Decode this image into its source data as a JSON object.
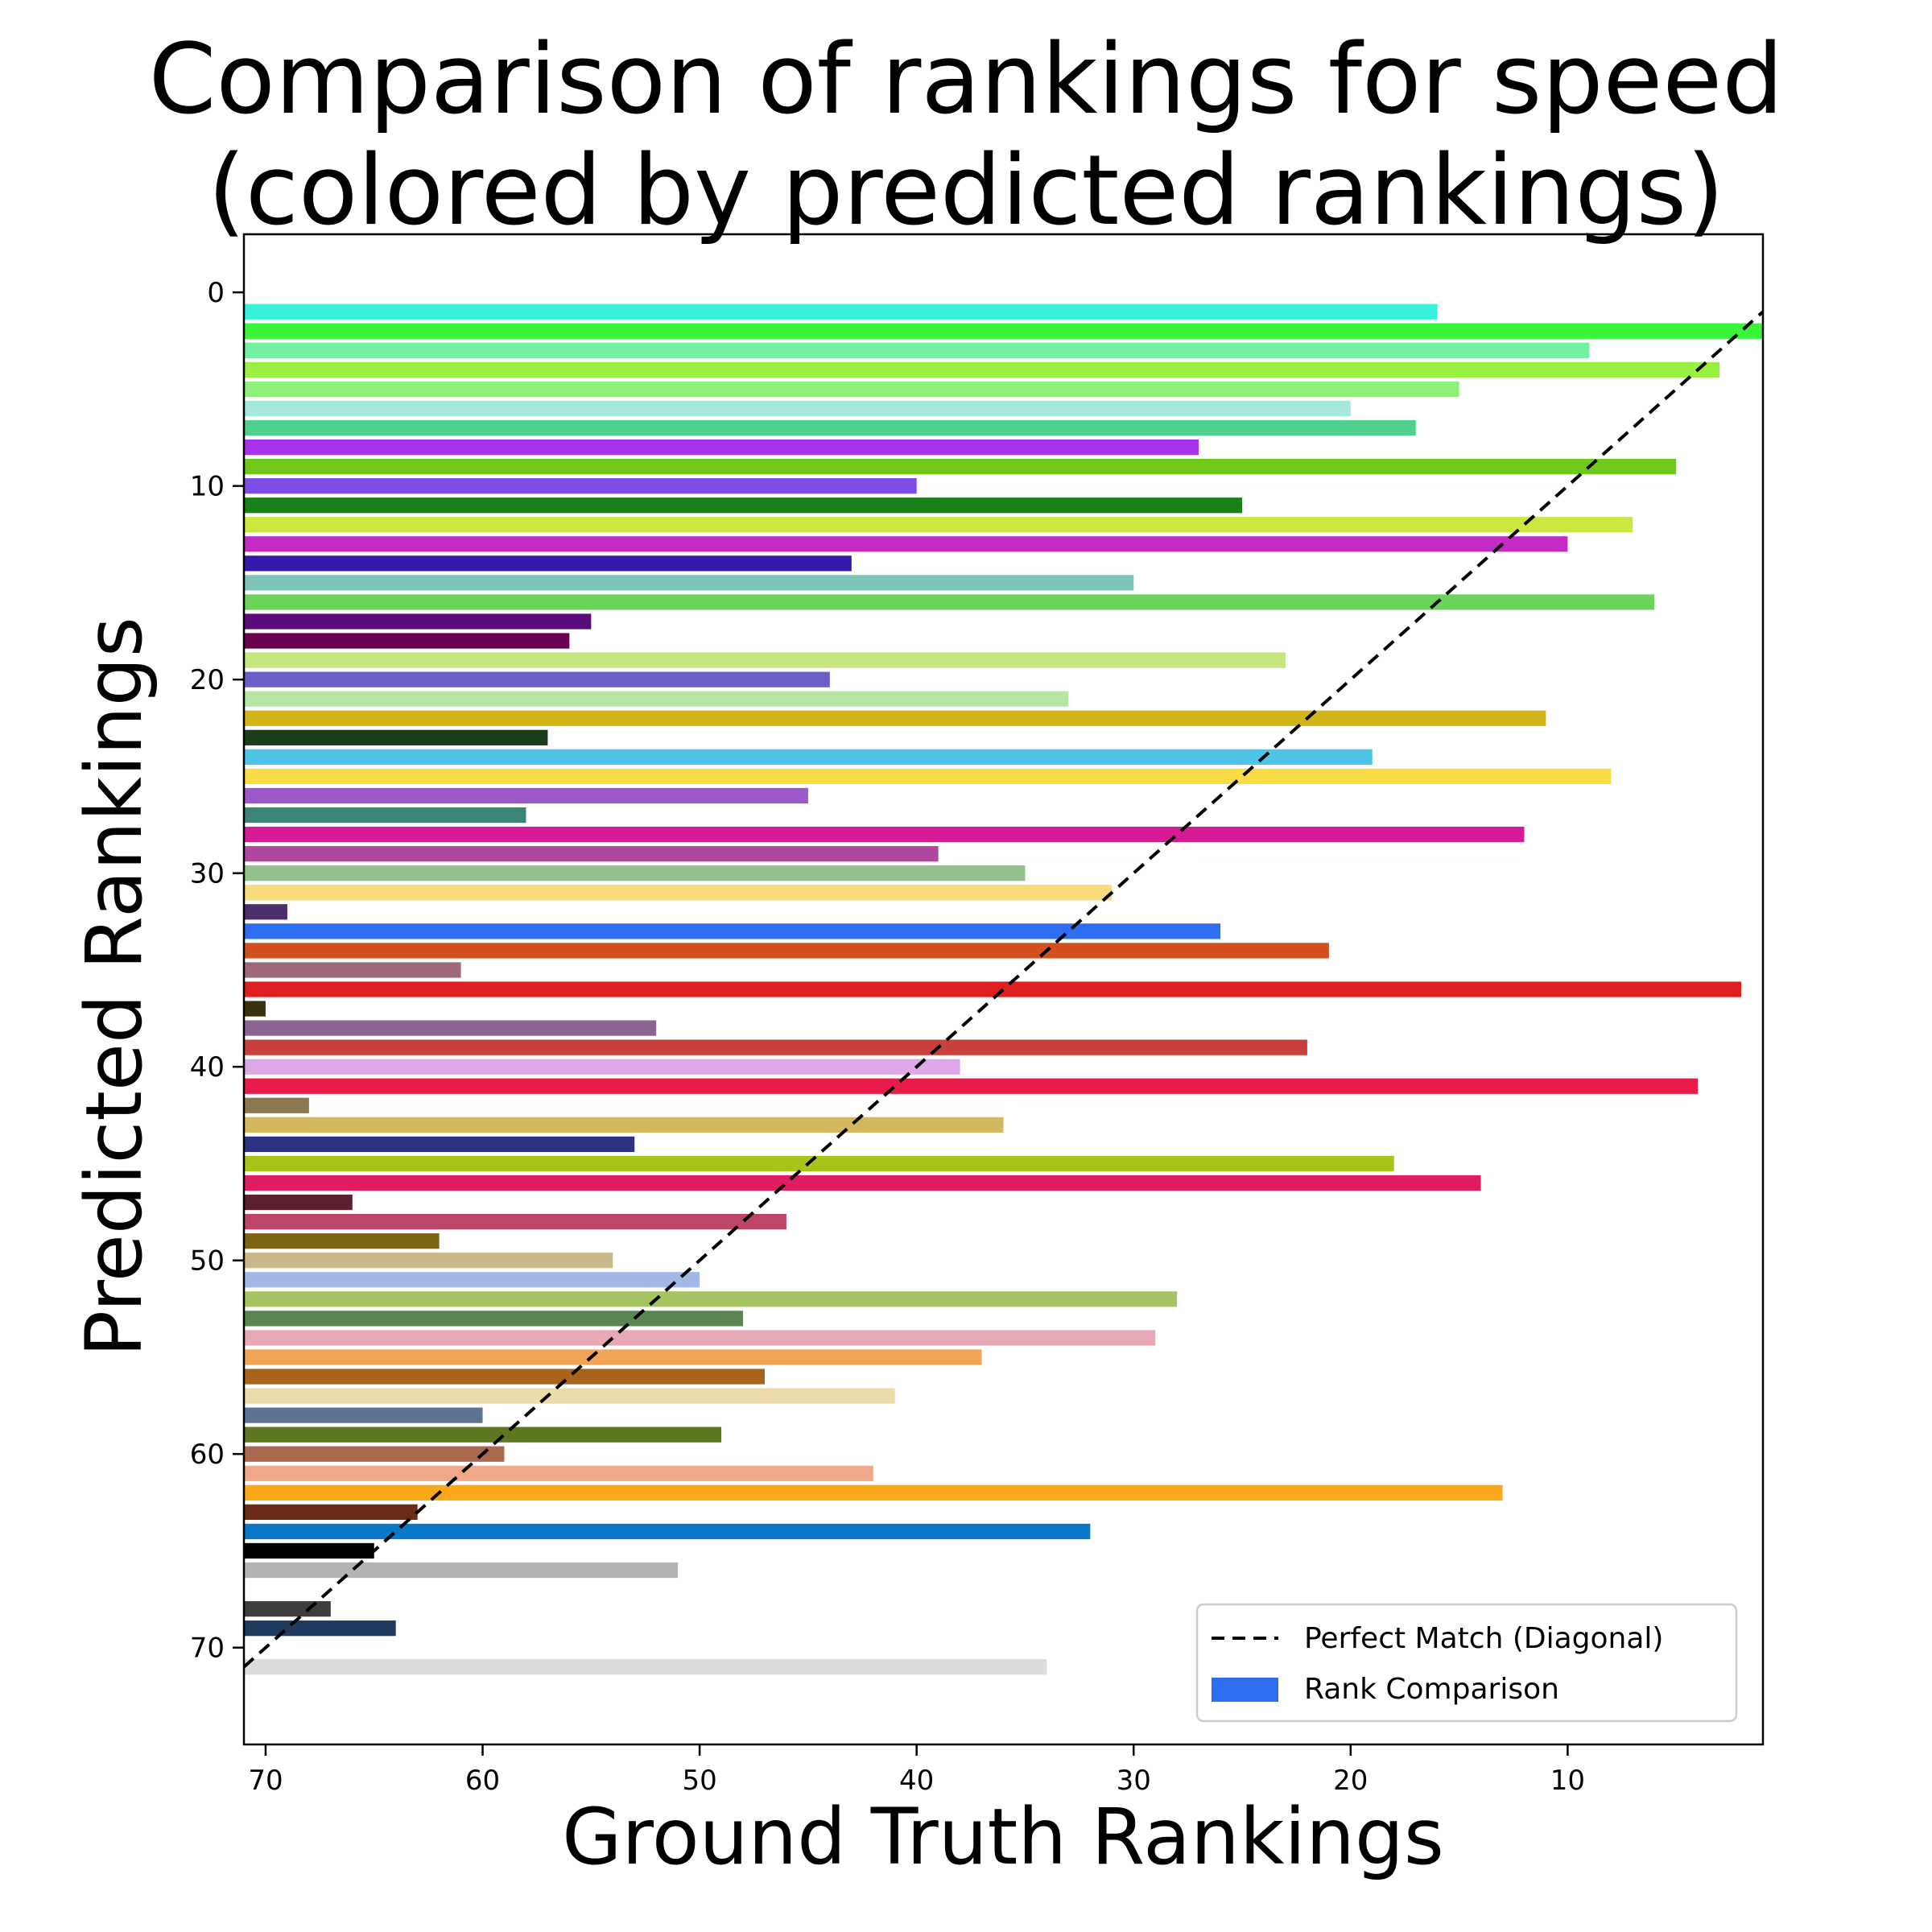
{
  "chart_data": {
    "type": "bar",
    "orientation": "horizontal",
    "title_lines": [
      "Comparison of rankings for speed",
      "(colored by predicted rankings)"
    ],
    "xlabel": "Ground Truth Rankings",
    "ylabel": "Predicted Rankings",
    "xlim": [
      71,
      1
    ],
    "ylim": [
      75,
      -3
    ],
    "x_inverted": true,
    "y_inverted": true,
    "xticks": [
      70,
      60,
      50,
      40,
      30,
      20,
      10
    ],
    "yticks": [
      0,
      10,
      20,
      30,
      40,
      50,
      60,
      70
    ],
    "diagonal": {
      "from": [
        71,
        71
      ],
      "to": [
        1,
        1
      ],
      "style": "dashed",
      "color": "#000000"
    },
    "legend": {
      "position": "lower-right",
      "entries": [
        {
          "label": "Perfect Match (Diagonal)",
          "kind": "dashed-line",
          "color": "#000000"
        },
        {
          "label": "Rank Comparison",
          "kind": "patch",
          "color": "#2e6cf0"
        }
      ]
    },
    "bars": [
      {
        "predicted": 1,
        "ground_truth": 16,
        "color": "#38f2dc"
      },
      {
        "predicted": 2,
        "ground_truth": 1,
        "color": "#3af43a"
      },
      {
        "predicted": 3,
        "ground_truth": 9,
        "color": "#72f0a0"
      },
      {
        "predicted": 4,
        "ground_truth": 3,
        "color": "#9af042"
      },
      {
        "predicted": 5,
        "ground_truth": 15,
        "color": "#8ef07a"
      },
      {
        "predicted": 6,
        "ground_truth": 20,
        "color": "#a5e8de"
      },
      {
        "predicted": 7,
        "ground_truth": 17,
        "color": "#4ed08e"
      },
      {
        "predicted": 8,
        "ground_truth": 27,
        "color": "#a832ec"
      },
      {
        "predicted": 9,
        "ground_truth": 5,
        "color": "#70c81a"
      },
      {
        "predicted": 10,
        "ground_truth": 40,
        "color": "#7a4ee6"
      },
      {
        "predicted": 11,
        "ground_truth": 25,
        "color": "#188218"
      },
      {
        "predicted": 12,
        "ground_truth": 7,
        "color": "#cde640"
      },
      {
        "predicted": 13,
        "ground_truth": 10,
        "color": "#c42ac4"
      },
      {
        "predicted": 14,
        "ground_truth": 43,
        "color": "#3418aa"
      },
      {
        "predicted": 15,
        "ground_truth": 30,
        "color": "#7ec4b8"
      },
      {
        "predicted": 16,
        "ground_truth": 6,
        "color": "#6cd45a"
      },
      {
        "predicted": 17,
        "ground_truth": 55,
        "color": "#5c0c7a"
      },
      {
        "predicted": 18,
        "ground_truth": 56,
        "color": "#6a0050"
      },
      {
        "predicted": 19,
        "ground_truth": 23,
        "color": "#c4e67c"
      },
      {
        "predicted": 20,
        "ground_truth": 44,
        "color": "#6a5ec8"
      },
      {
        "predicted": 21,
        "ground_truth": 33,
        "color": "#b6e6a4"
      },
      {
        "predicted": 22,
        "ground_truth": 11,
        "color": "#d2b418"
      },
      {
        "predicted": 23,
        "ground_truth": 57,
        "color": "#1a3e1a"
      },
      {
        "predicted": 24,
        "ground_truth": 19,
        "color": "#4ec4e6"
      },
      {
        "predicted": 25,
        "ground_truth": 8,
        "color": "#fadc44"
      },
      {
        "predicted": 26,
        "ground_truth": 45,
        "color": "#9c58c8"
      },
      {
        "predicted": 27,
        "ground_truth": 58,
        "color": "#3a8478"
      },
      {
        "predicted": 28,
        "ground_truth": 12,
        "color": "#d81a96"
      },
      {
        "predicted": 29,
        "ground_truth": 39,
        "color": "#b048a0"
      },
      {
        "predicted": 30,
        "ground_truth": 35,
        "color": "#94c28c"
      },
      {
        "predicted": 31,
        "ground_truth": 31,
        "color": "#f8dc7c"
      },
      {
        "predicted": 32,
        "ground_truth": 69,
        "color": "#4e2e6a"
      },
      {
        "predicted": 33,
        "ground_truth": 26,
        "color": "#2e6cf0"
      },
      {
        "predicted": 34,
        "ground_truth": 21,
        "color": "#d05020"
      },
      {
        "predicted": 35,
        "ground_truth": 61,
        "color": "#9e6878"
      },
      {
        "predicted": 36,
        "ground_truth": 2,
        "color": "#e02020"
      },
      {
        "predicted": 37,
        "ground_truth": 70,
        "color": "#3a3010"
      },
      {
        "predicted": 38,
        "ground_truth": 52,
        "color": "#8c6494"
      },
      {
        "predicted": 39,
        "ground_truth": 22,
        "color": "#c8403c"
      },
      {
        "predicted": 40,
        "ground_truth": 38,
        "color": "#dca8e8"
      },
      {
        "predicted": 41,
        "ground_truth": 4,
        "color": "#e81c4a"
      },
      {
        "predicted": 42,
        "ground_truth": 68,
        "color": "#8a7850"
      },
      {
        "predicted": 43,
        "ground_truth": 36,
        "color": "#d4b860"
      },
      {
        "predicted": 44,
        "ground_truth": 53,
        "color": "#2e3284"
      },
      {
        "predicted": 45,
        "ground_truth": 18,
        "color": "#a8c418"
      },
      {
        "predicted": 46,
        "ground_truth": 14,
        "color": "#e01c62"
      },
      {
        "predicted": 47,
        "ground_truth": 66,
        "color": "#5c2030"
      },
      {
        "predicted": 48,
        "ground_truth": 46,
        "color": "#be4468"
      },
      {
        "predicted": 49,
        "ground_truth": 62,
        "color": "#7c6414"
      },
      {
        "predicted": 50,
        "ground_truth": 54,
        "color": "#c8b88a"
      },
      {
        "predicted": 51,
        "ground_truth": 50,
        "color": "#a2b8e6"
      },
      {
        "predicted": 52,
        "ground_truth": 28,
        "color": "#a6c462"
      },
      {
        "predicted": 53,
        "ground_truth": 48,
        "color": "#5a8450"
      },
      {
        "predicted": 54,
        "ground_truth": 29,
        "color": "#e6a8b4"
      },
      {
        "predicted": 55,
        "ground_truth": 37,
        "color": "#f2a458"
      },
      {
        "predicted": 56,
        "ground_truth": 47,
        "color": "#a8641c"
      },
      {
        "predicted": 57,
        "ground_truth": 41,
        "color": "#ecdcac"
      },
      {
        "predicted": 58,
        "ground_truth": 60,
        "color": "#5e7294"
      },
      {
        "predicted": 59,
        "ground_truth": 49,
        "color": "#5e7820"
      },
      {
        "predicted": 60,
        "ground_truth": 59,
        "color": "#aa6850"
      },
      {
        "predicted": 61,
        "ground_truth": 42,
        "color": "#f0a888"
      },
      {
        "predicted": 62,
        "ground_truth": 13,
        "color": "#f8a818"
      },
      {
        "predicted": 63,
        "ground_truth": 63,
        "color": "#6a2c16"
      },
      {
        "predicted": 64,
        "ground_truth": 32,
        "color": "#0a78c8"
      },
      {
        "predicted": 65,
        "ground_truth": 65,
        "color": "#000000"
      },
      {
        "predicted": 66,
        "ground_truth": 51,
        "color": "#b4b4b4"
      },
      {
        "predicted": 68,
        "ground_truth": 67,
        "color": "#3e3e3e"
      },
      {
        "predicted": 69,
        "ground_truth": 64,
        "color": "#1e3a5e"
      },
      {
        "predicted": 71,
        "ground_truth": 34,
        "color": "#dcdcdc"
      }
    ]
  }
}
